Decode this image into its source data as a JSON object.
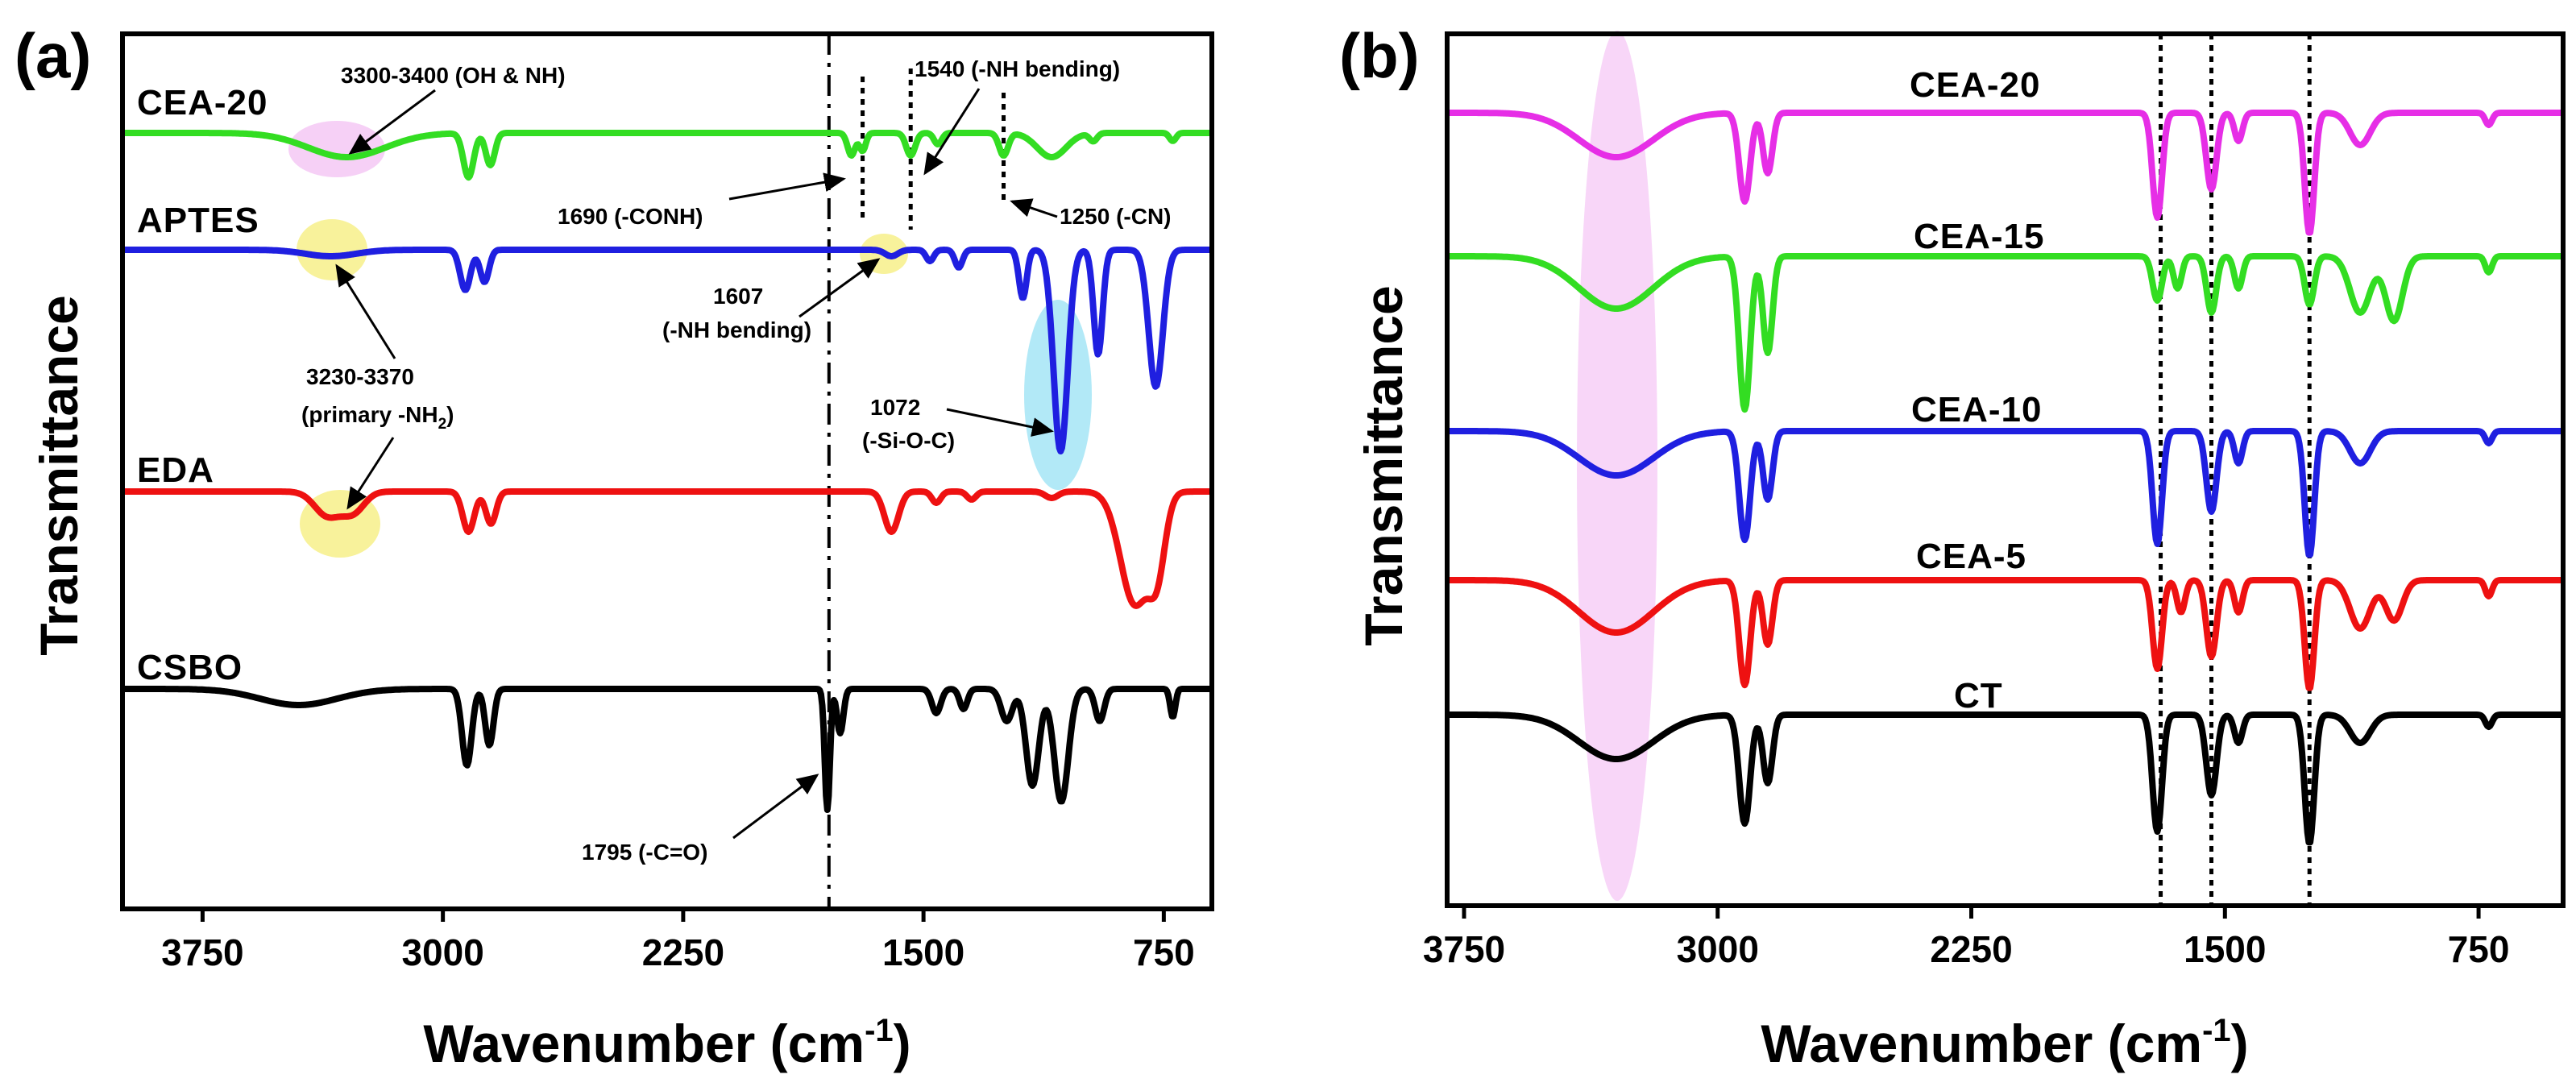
{
  "colors": {
    "CEA-20": "#e62ee6",
    "CEA-15": "#33dd22",
    "CEA-10": "#1f1fe0",
    "CEA-5": "#ee1111",
    "CT": "#000000",
    "CSBO": "#000000",
    "EDA": "#ee1111",
    "APTES": "#1f1fe0",
    "CEA-20-a": "#33dd22",
    "highlight_pink": "#f5c8f5",
    "highlight_yellow": "#f7f08a",
    "highlight_blue": "#9fe3f5"
  },
  "chart_data": [
    {
      "panel": "(a)",
      "type": "line",
      "xlabel": "Wavenumber (cm",
      "xlabel_sup": "-1",
      "xlabel_end": ")",
      "ylabel": "Transmittance",
      "xlim": [
        4000,
        600
      ],
      "x_reversed": true,
      "xticks": [
        "3750",
        "3000",
        "2250",
        "1500",
        "750"
      ],
      "xtick_values": [
        3750,
        3000,
        2250,
        1500,
        750
      ],
      "series": [
        {
          "name": "CEA-20",
          "label": "CEA-20",
          "offset": 4
        },
        {
          "name": "APTES",
          "label": "APTES",
          "offset": 3
        },
        {
          "name": "EDA",
          "label": "EDA",
          "offset": 2
        },
        {
          "name": "CSBO",
          "label": "CSBO",
          "offset": 1
        }
      ],
      "reference_lines": [
        {
          "x": 1795,
          "style": "dash-dot"
        },
        {
          "x": 1690,
          "style": "dotted"
        },
        {
          "x": 1540,
          "style": "dotted"
        },
        {
          "x": 1250,
          "style": "dotted"
        }
      ],
      "annotations": [
        {
          "text": "3300-3400 (OH & NH)",
          "x": 3300
        },
        {
          "text": "1540 (-NH bending)",
          "x": 1540
        },
        {
          "text": "1690 (-CONH)",
          "x": 1690
        },
        {
          "text": "1250 (-CN)",
          "x": 1250
        },
        {
          "text": "1607",
          "x": 1607
        },
        {
          "text": "(-NH bending)",
          "x": 1607
        },
        {
          "text": "3230-3370",
          "x": 3300
        },
        {
          "text": "(primary -NH",
          "sub": "2",
          "end": ")",
          "x": 3300
        },
        {
          "text": "1072",
          "x": 1072
        },
        {
          "text": "(-Si-O-C)",
          "x": 1072
        },
        {
          "text": "1795 (-C=O)",
          "x": 1795
        }
      ]
    },
    {
      "panel": "(b)",
      "type": "line",
      "xlabel": "Wavenumber (cm",
      "xlabel_sup": "-1",
      "xlabel_end": ")",
      "ylabel": "Transmittance",
      "xlim": [
        3800,
        500
      ],
      "x_reversed": true,
      "xticks": [
        "3750",
        "3000",
        "2250",
        "1500",
        "750"
      ],
      "xtick_values": [
        3750,
        3000,
        2250,
        1500,
        750
      ],
      "series": [
        {
          "name": "CEA-20",
          "label": "CEA-20",
          "offset": 5
        },
        {
          "name": "CEA-15",
          "label": "CEA-15",
          "offset": 4
        },
        {
          "name": "CEA-10",
          "label": "CEA-10",
          "offset": 3
        },
        {
          "name": "CEA-5",
          "label": "CEA-5",
          "offset": 2
        },
        {
          "name": "CT",
          "label": "CT",
          "offset": 1
        }
      ],
      "reference_lines": [
        {
          "x": 1690,
          "style": "dotted"
        },
        {
          "x": 1540,
          "style": "dotted"
        },
        {
          "x": 1250,
          "style": "dotted"
        }
      ],
      "highlight_band_center": 3300
    }
  ]
}
